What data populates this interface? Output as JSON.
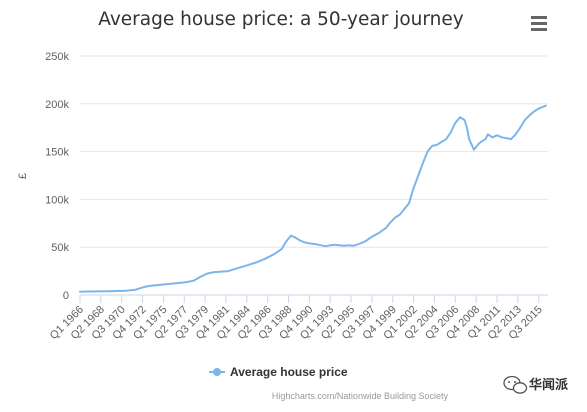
{
  "chart_data": {
    "type": "line",
    "title": "Average house price: a 50-year journey",
    "xlabel": "",
    "ylabel": "£",
    "ylim": [
      0,
      250000
    ],
    "yticks": [
      {
        "value": 0,
        "label": "0"
      },
      {
        "value": 50000,
        "label": "50k"
      },
      {
        "value": 100000,
        "label": "100k"
      },
      {
        "value": 150000,
        "label": "150k"
      },
      {
        "value": 200000,
        "label": "200k"
      },
      {
        "value": 250000,
        "label": "250k"
      }
    ],
    "xlim": [
      1966.0,
      2016.5
    ],
    "xticks": [
      {
        "value": 1966.0,
        "label": "Q1 1966"
      },
      {
        "value": 1968.25,
        "label": "Q2 1968"
      },
      {
        "value": 1970.5,
        "label": "Q3 1970"
      },
      {
        "value": 1972.75,
        "label": "Q4 1972"
      },
      {
        "value": 1975.0,
        "label": "Q1 1975"
      },
      {
        "value": 1977.25,
        "label": "Q2 1977"
      },
      {
        "value": 1979.5,
        "label": "Q3 1979"
      },
      {
        "value": 1981.75,
        "label": "Q4 1981"
      },
      {
        "value": 1984.0,
        "label": "Q1 1984"
      },
      {
        "value": 1986.25,
        "label": "Q2 1986"
      },
      {
        "value": 1988.5,
        "label": "Q3 1988"
      },
      {
        "value": 1990.75,
        "label": "Q4 1990"
      },
      {
        "value": 1993.0,
        "label": "Q1 1993"
      },
      {
        "value": 1995.25,
        "label": "Q2 1995"
      },
      {
        "value": 1997.5,
        "label": "Q3 1997"
      },
      {
        "value": 1999.75,
        "label": "Q4 1999"
      },
      {
        "value": 2002.0,
        "label": "Q1 2002"
      },
      {
        "value": 2004.25,
        "label": "Q2 2004"
      },
      {
        "value": 2006.5,
        "label": "Q3 2006"
      },
      {
        "value": 2008.75,
        "label": "Q4 2008"
      },
      {
        "value": 2011.0,
        "label": "Q1 2011"
      },
      {
        "value": 2013.25,
        "label": "Q2 2013"
      },
      {
        "value": 2015.5,
        "label": "Q3 2015"
      }
    ],
    "grid": true,
    "legend": "bottom-center",
    "series": [
      {
        "name": "Average house price",
        "color": "#7cb5ec",
        "x": [
          1966.0,
          1967.0,
          1968.0,
          1969.0,
          1970.0,
          1971.0,
          1972.0,
          1972.75,
          1973.5,
          1974.5,
          1975.5,
          1976.5,
          1977.5,
          1978.25,
          1979.0,
          1979.75,
          1980.5,
          1981.25,
          1982.0,
          1983.0,
          1984.0,
          1985.0,
          1986.0,
          1987.0,
          1987.75,
          1988.25,
          1988.75,
          1989.25,
          1989.75,
          1990.25,
          1990.75,
          1991.5,
          1992.0,
          1992.5,
          1993.0,
          1993.5,
          1994.0,
          1994.5,
          1995.0,
          1995.5,
          1996.0,
          1996.75,
          1997.5,
          1998.25,
          1999.0,
          1999.5,
          2000.0,
          2000.5,
          2001.0,
          2001.5,
          2002.0,
          2002.5,
          2003.0,
          2003.5,
          2004.0,
          2004.5,
          2005.0,
          2005.5,
          2006.0,
          2006.5,
          2007.0,
          2007.5,
          2007.75,
          2008.0,
          2008.5,
          2009.0,
          2009.25,
          2009.75,
          2010.0,
          2010.5,
          2011.0,
          2011.5,
          2012.0,
          2012.5,
          2013.0,
          2013.5,
          2014.0,
          2014.5,
          2015.0,
          2015.5,
          2016.0,
          2016.25
        ],
        "y": [
          3500,
          3700,
          3800,
          4000,
          4200,
          4500,
          5500,
          8000,
          9500,
          10500,
          11500,
          12500,
          13500,
          15000,
          19000,
          22500,
          24000,
          24500,
          25000,
          28000,
          31000,
          34000,
          38000,
          43000,
          48000,
          56000,
          62000,
          60000,
          57000,
          55000,
          54000,
          53000,
          52000,
          51000,
          52000,
          52500,
          52000,
          51500,
          52000,
          51500,
          53000,
          56000,
          61000,
          65000,
          70000,
          76000,
          81000,
          84000,
          90000,
          96000,
          112000,
          125000,
          138000,
          150000,
          156000,
          157000,
          160000,
          163000,
          170000,
          180000,
          186000,
          183000,
          175000,
          163000,
          152000,
          158000,
          160000,
          163000,
          168000,
          165000,
          167000,
          165000,
          164000,
          163000,
          168000,
          175000,
          183000,
          188000,
          192000,
          195000,
          197000,
          198000
        ]
      }
    ]
  },
  "menu": {
    "icon": "hamburger-menu-icon"
  },
  "credits": "Highcharts.com/Nationwide Building Society",
  "watermark": {
    "text": "华闻派",
    "icon": "wechat-icon"
  }
}
